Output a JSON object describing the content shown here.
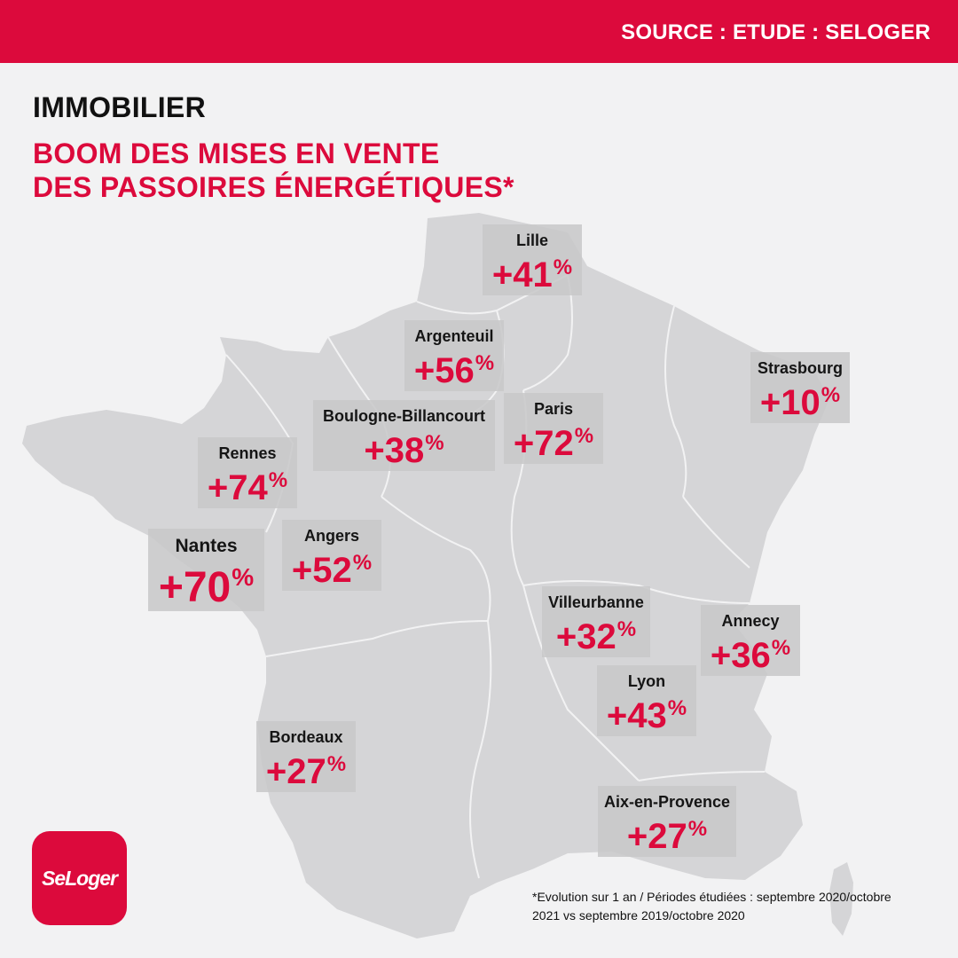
{
  "header": {
    "source": "SOURCE : ETUDE : SELOGER"
  },
  "title": {
    "kicker": "IMMOBILIER",
    "headline_line1": "BOOM DES MISES EN VENTE",
    "headline_line2": "DES PASSOIRES ÉNERGÉTIQUES*"
  },
  "cities": [
    {
      "name": "Lille",
      "value": "+41",
      "unit": "%"
    },
    {
      "name": "Argenteuil",
      "value": "+56",
      "unit": "%"
    },
    {
      "name": "Strasbourg",
      "value": "+10",
      "unit": "%"
    },
    {
      "name": "Boulogne-Billancourt",
      "value": "+38",
      "unit": "%"
    },
    {
      "name": "Paris",
      "value": "+72",
      "unit": "%"
    },
    {
      "name": "Rennes",
      "value": "+74",
      "unit": "%"
    },
    {
      "name": "Angers",
      "value": "+52",
      "unit": "%"
    },
    {
      "name": "Nantes",
      "value": "+70",
      "unit": "%"
    },
    {
      "name": "Villeurbanne",
      "value": "+32",
      "unit": "%"
    },
    {
      "name": "Annecy",
      "value": "+36",
      "unit": "%"
    },
    {
      "name": "Lyon",
      "value": "+43",
      "unit": "%"
    },
    {
      "name": "Bordeaux",
      "value": "+27",
      "unit": "%"
    },
    {
      "name": "Aix-en-Provence",
      "value": "+27",
      "unit": "%"
    }
  ],
  "logo": {
    "text": "SeLoger"
  },
  "footnote": {
    "line1": "*Evolution sur 1 an / Périodes étudiées : septembre 2020/octobre",
    "line2": "2021 vs septembre 2019/octobre 2020"
  },
  "colors": {
    "brand_red": "#dc0a3c",
    "map_fill": "#d5d5d7",
    "background": "#f2f2f3"
  }
}
